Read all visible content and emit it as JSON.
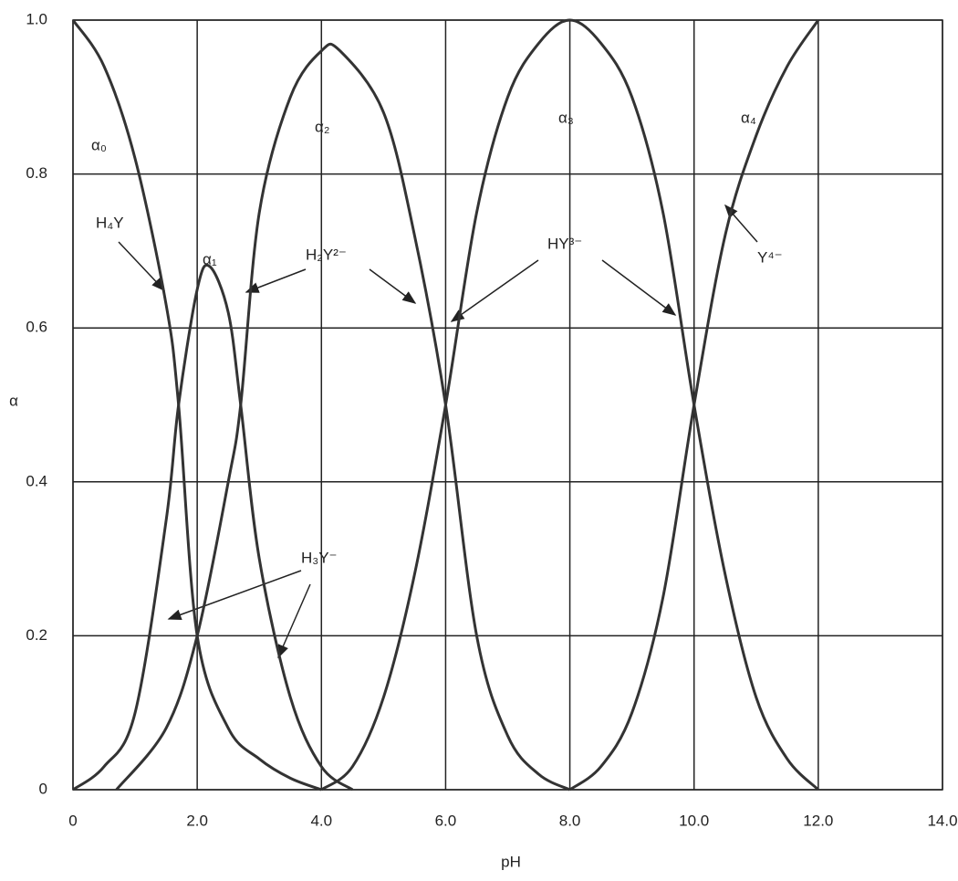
{
  "chart_data": {
    "type": "line",
    "x_label": "pH",
    "y_label": "α",
    "xlim": [
      0,
      14
    ],
    "ylim": [
      0,
      1
    ],
    "xticks": [
      0,
      {
        "value": 2,
        "label": "2.0"
      },
      {
        "value": 4,
        "label": "4.0"
      },
      {
        "value": 6,
        "label": "6.0"
      },
      {
        "value": 8,
        "label": "8.0"
      },
      {
        "value": 10,
        "label": "10.0"
      },
      {
        "value": 12,
        "label": "12.0"
      },
      {
        "value": 14,
        "label": "14.0"
      }
    ],
    "yticks": [
      0,
      0.2,
      0.4,
      0.6,
      0.8,
      {
        "value": 1,
        "label": "1.0"
      }
    ],
    "grid": true,
    "series": [
      {
        "name": "α₀",
        "color": "#333333",
        "x": [
          0,
          0.5,
          1,
          1.5,
          1.7,
          2,
          2.5,
          3,
          3.5,
          4
        ],
        "values": [
          1,
          0.94,
          0.82,
          0.63,
          0.5,
          0.2,
          0.08,
          0.04,
          0.015,
          0
        ]
      },
      {
        "name": "α₁",
        "color": "#333333",
        "x": [
          0,
          0.5,
          1,
          1.5,
          1.7,
          2,
          2.2,
          2.5,
          2.7,
          3,
          3.5,
          4,
          4.5
        ],
        "values": [
          0,
          0.03,
          0.1,
          0.35,
          0.5,
          0.65,
          0.68,
          0.62,
          0.5,
          0.3,
          0.12,
          0.03,
          0
        ]
      },
      {
        "name": "α₂",
        "color": "#333333",
        "x": [
          0.7,
          1.5,
          2,
          2.5,
          2.7,
          3,
          3.5,
          4,
          4.3,
          5,
          5.5,
          6,
          6.5,
          7,
          7.5,
          8
        ],
        "values": [
          0,
          0.08,
          0.2,
          0.4,
          0.5,
          0.75,
          0.9,
          0.96,
          0.96,
          0.88,
          0.72,
          0.5,
          0.2,
          0.07,
          0.02,
          0
        ]
      },
      {
        "name": "α₃",
        "color": "#333333",
        "x": [
          4,
          4.5,
          5,
          5.5,
          6,
          6.5,
          7,
          7.5,
          8,
          8.5,
          9,
          9.5,
          10,
          10.5,
          11,
          11.5,
          12
        ],
        "values": [
          0,
          0.03,
          0.12,
          0.28,
          0.5,
          0.75,
          0.9,
          0.97,
          1,
          0.97,
          0.9,
          0.75,
          0.5,
          0.28,
          0.12,
          0.04,
          0
        ]
      },
      {
        "name": "α₄",
        "color": "#333333",
        "x": [
          8,
          8.5,
          9,
          9.5,
          10,
          10.5,
          11,
          11.5,
          12
        ],
        "values": [
          0,
          0.03,
          0.1,
          0.25,
          0.5,
          0.72,
          0.85,
          0.94,
          1
        ]
      }
    ],
    "annotations": [
      "H₄Y",
      "H₂Y²⁻",
      "H₃Y⁻",
      "HY³⁻",
      "Y⁴⁻"
    ]
  }
}
